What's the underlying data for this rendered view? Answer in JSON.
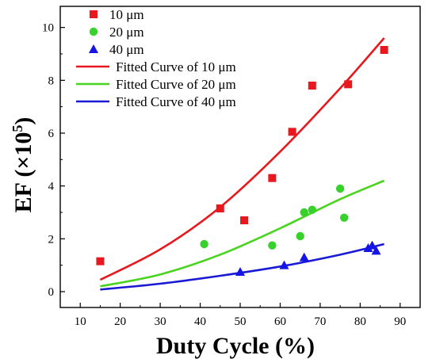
{
  "chart_data": {
    "type": "scatter",
    "xlabel": "Duty Cycle (%)",
    "ylabel_main": "EF (×10",
    "ylabel_sup": "5",
    "ylabel_close": ")",
    "xlim": [
      5,
      95
    ],
    "ylim": [
      -0.6,
      10.8
    ],
    "xticks": [
      10,
      20,
      30,
      40,
      50,
      60,
      70,
      80,
      90
    ],
    "yticks": [
      0,
      2,
      4,
      6,
      8,
      10
    ],
    "legend_position": "top-left",
    "series": [
      {
        "name": "10 μm",
        "marker": "square",
        "color": "#e8191e",
        "points": [
          [
            15,
            1.15
          ],
          [
            45,
            3.15
          ],
          [
            51,
            2.7
          ],
          [
            58,
            4.3
          ],
          [
            63,
            6.05
          ],
          [
            68,
            7.8
          ],
          [
            77,
            7.85
          ],
          [
            86,
            9.15
          ]
        ]
      },
      {
        "name": "20 μm",
        "marker": "circle",
        "color": "#36d12a",
        "points": [
          [
            41,
            1.8
          ],
          [
            58,
            1.75
          ],
          [
            65,
            2.1
          ],
          [
            66,
            3.0
          ],
          [
            68,
            3.1
          ],
          [
            75,
            3.9
          ],
          [
            76,
            2.8
          ]
        ]
      },
      {
        "name": "40 μm",
        "marker": "triangle",
        "color": "#1414e6",
        "points": [
          [
            50,
            0.75
          ],
          [
            61,
            1.0
          ],
          [
            66,
            1.3
          ],
          [
            82,
            1.65
          ],
          [
            83,
            1.75
          ],
          [
            84,
            1.55
          ]
        ]
      }
    ],
    "fits": [
      {
        "name": "Fitted Curve of 10 μm",
        "color": "#e8191e",
        "points": [
          [
            15,
            0.45
          ],
          [
            30,
            1.6
          ],
          [
            45,
            3.2
          ],
          [
            60,
            5.3
          ],
          [
            75,
            7.7
          ],
          [
            86,
            9.6
          ]
        ]
      },
      {
        "name": "Fitted Curve of 20 μm",
        "color": "#49d420",
        "points": [
          [
            15,
            0.2
          ],
          [
            30,
            0.65
          ],
          [
            45,
            1.4
          ],
          [
            60,
            2.4
          ],
          [
            75,
            3.5
          ],
          [
            86,
            4.2
          ]
        ]
      },
      {
        "name": "Fitted Curve of 40 μm",
        "color": "#1a1ad6",
        "points": [
          [
            15,
            0.08
          ],
          [
            30,
            0.3
          ],
          [
            45,
            0.6
          ],
          [
            60,
            0.95
          ],
          [
            75,
            1.4
          ],
          [
            86,
            1.8
          ]
        ]
      }
    ]
  }
}
